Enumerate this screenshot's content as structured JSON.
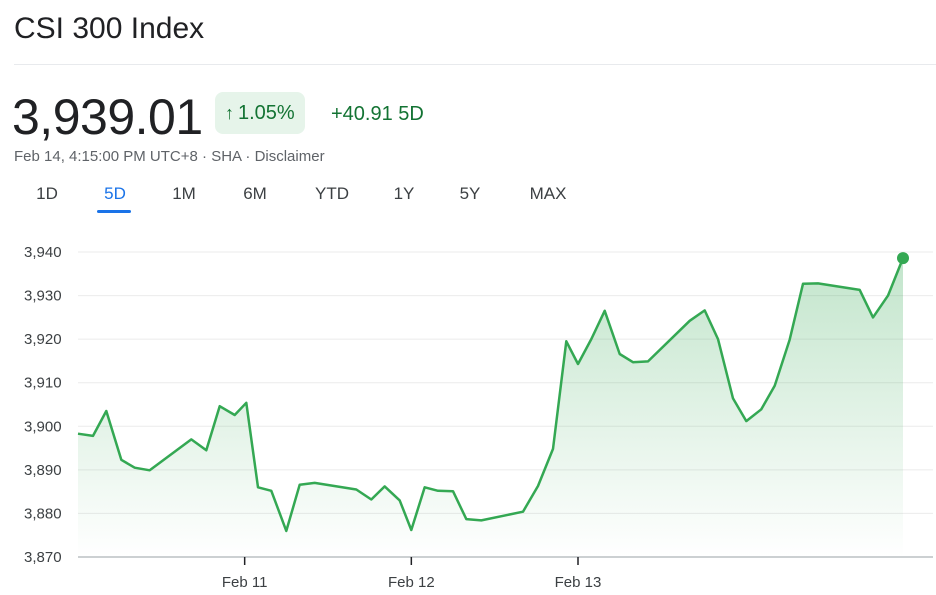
{
  "header": {
    "title": "CSI 300 Index",
    "price": "3,939.01",
    "change_pct": "1.05%",
    "change_abs": "+40.91 5D",
    "date_time": "Feb 14, 4:15:00 PM UTC+8",
    "exchange": "SHA",
    "disclaimer": "Disclaimer",
    "separator": "·",
    "up_arrow_icon": "arrow-up-icon"
  },
  "tabs": [
    {
      "label": "1D",
      "active": false
    },
    {
      "label": "5D",
      "active": true
    },
    {
      "label": "1M",
      "active": false
    },
    {
      "label": "6M",
      "active": false
    },
    {
      "label": "YTD",
      "active": false
    },
    {
      "label": "1Y",
      "active": false
    },
    {
      "label": "5Y",
      "active": false
    },
    {
      "label": "MAX",
      "active": false
    }
  ],
  "colors": {
    "line": "#34a853",
    "fill": "#34a853",
    "up_text": "#137333",
    "badge_bg": "#e6f4ea",
    "active_tab": "#1a73e8"
  },
  "chart_data": {
    "type": "area",
    "title": "",
    "xlabel": "",
    "ylabel": "",
    "ylim": [
      3870,
      3940
    ],
    "yticks": [
      3870,
      3880,
      3890,
      3900,
      3910,
      3920,
      3930,
      3940
    ],
    "ytick_labels": [
      "3,870",
      "3,880",
      "3,890",
      "3,900",
      "3,910",
      "3,920",
      "3,930",
      "3,940"
    ],
    "xticks": [
      {
        "x": 1.0,
        "label": "Feb 11"
      },
      {
        "x": 2.0,
        "label": "Feb 12"
      },
      {
        "x": 3.0,
        "label": "Feb 13"
      }
    ],
    "xlim": [
      0,
      4.95
    ],
    "grid": true,
    "series": [
      {
        "x": [
          0.0,
          0.09,
          0.17,
          0.26,
          0.34,
          0.43,
          0.68,
          0.77,
          0.85,
          0.94,
          1.01,
          1.08,
          1.16,
          1.25,
          1.33,
          1.42,
          1.67,
          1.76,
          1.84,
          1.93,
          2.0,
          2.08,
          2.16,
          2.25,
          2.33,
          2.42,
          2.67,
          2.76,
          2.85,
          2.93,
          3.0,
          3.08,
          3.16,
          3.25,
          3.33,
          3.42,
          3.67,
          3.76,
          3.84,
          3.93,
          4.01,
          4.1,
          4.18,
          4.27,
          4.35,
          4.44,
          4.69,
          4.77,
          4.86,
          4.95
        ],
        "values": [
          3898.3,
          3897.8,
          3903.5,
          3892.3,
          3890.5,
          3889.9,
          3897.0,
          3894.5,
          3904.6,
          3902.6,
          3905.4,
          3886.0,
          3885.2,
          3876.0,
          3886.6,
          3887.0,
          3885.5,
          3883.2,
          3886.2,
          3883.0,
          3876.2,
          3886.0,
          3885.2,
          3885.1,
          3878.7,
          3878.4,
          3880.4,
          3886.3,
          3894.8,
          3919.5,
          3914.3,
          3920.0,
          3926.5,
          3916.6,
          3914.7,
          3914.9,
          3924.2,
          3926.6,
          3920.0,
          3906.4,
          3901.2,
          3903.9,
          3909.3,
          3919.9,
          3932.7,
          3932.8,
          3931.3,
          3925.0,
          3930.0,
          3938.6
        ]
      }
    ]
  }
}
